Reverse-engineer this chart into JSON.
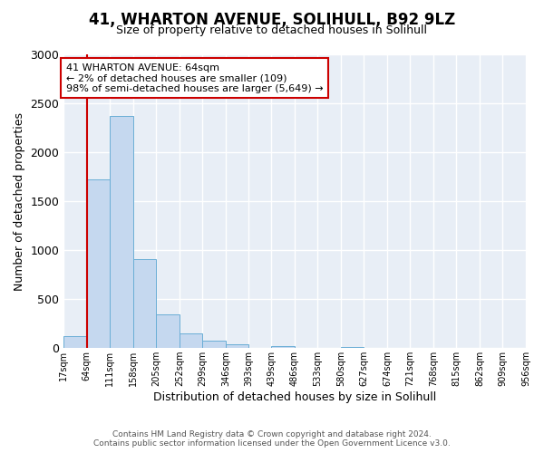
{
  "title": "41, WHARTON AVENUE, SOLIHULL, B92 9LZ",
  "subtitle": "Size of property relative to detached houses in Solihull",
  "xlabel": "Distribution of detached houses by size in Solihull",
  "ylabel": "Number of detached properties",
  "bin_labels": [
    "17sqm",
    "64sqm",
    "111sqm",
    "158sqm",
    "205sqm",
    "252sqm",
    "299sqm",
    "346sqm",
    "393sqm",
    "439sqm",
    "486sqm",
    "533sqm",
    "580sqm",
    "627sqm",
    "674sqm",
    "721sqm",
    "768sqm",
    "815sqm",
    "862sqm",
    "909sqm",
    "956sqm"
  ],
  "bar_values": [
    125,
    1720,
    2370,
    910,
    340,
    150,
    80,
    35,
    0,
    20,
    0,
    0,
    15,
    0,
    0,
    0,
    0,
    0,
    0,
    0
  ],
  "bin_width": 47,
  "bar_color": "#c5d8ef",
  "bar_edge_color": "#6aaed6",
  "property_line_x": 64,
  "property_line_color": "#cc0000",
  "annotation_line1": "41 WHARTON AVENUE: 64sqm",
  "annotation_line2": "← 2% of detached houses are smaller (109)",
  "annotation_line3": "98% of semi-detached houses are larger (5,649) →",
  "annotation_box_color": "#cc0000",
  "ylim": [
    0,
    3000
  ],
  "yticks": [
    0,
    500,
    1000,
    1500,
    2000,
    2500,
    3000
  ],
  "footer_line1": "Contains HM Land Registry data © Crown copyright and database right 2024.",
  "footer_line2": "Contains public sector information licensed under the Open Government Licence v3.0.",
  "background_color": "#ffffff",
  "plot_bg_color": "#e8eef6",
  "grid_color": "#ffffff"
}
